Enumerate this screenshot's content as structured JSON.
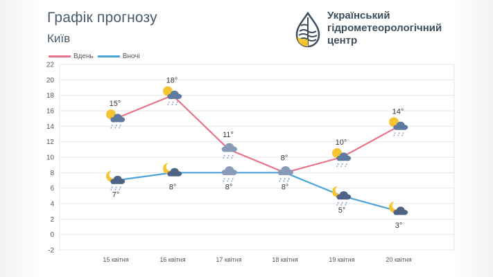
{
  "header": {
    "title": "Графік прогнозу",
    "city": "Київ"
  },
  "logo": {
    "line1": "Український",
    "line2": "гідрометеорологічний",
    "line3": "центр"
  },
  "colors": {
    "day": "#e8728a",
    "night": "#4aa3d8",
    "grid": "#e6e6e6",
    "text": "#4a5a6a"
  },
  "chart_data": {
    "type": "line",
    "categories": [
      "15 квітня",
      "16 квітня",
      "17 квітня",
      "18 квітня",
      "19 квітня",
      "20 квітня"
    ],
    "series": [
      {
        "name": "Вдень",
        "values": [
          15,
          18,
          11,
          8,
          10,
          14
        ],
        "labels": [
          "15°",
          "18°",
          "11°",
          "8°",
          "10°",
          "14°"
        ],
        "icons": [
          "sun-cloud-rain",
          "sun-cloud-rain",
          "cloud-rain",
          "cloud-rain",
          "sun-cloud-rain",
          "sun-cloud-rain"
        ]
      },
      {
        "name": "Вночі",
        "values": [
          7,
          8,
          8,
          8,
          5,
          3
        ],
        "labels": [
          "7°",
          "8°",
          "8°",
          "8°",
          "5°",
          "3°"
        ],
        "icons": [
          "moon-cloud-rain",
          "moon-cloud",
          "cloud-rain",
          "cloud-rain",
          "moon-cloud-rain",
          "moon-cloud"
        ]
      }
    ],
    "ylim": [
      -2,
      22
    ],
    "yticks": [
      -2,
      0,
      2,
      4,
      6,
      8,
      10,
      12,
      14,
      16,
      18,
      20,
      22
    ],
    "grid": true,
    "legend": "top-left"
  }
}
